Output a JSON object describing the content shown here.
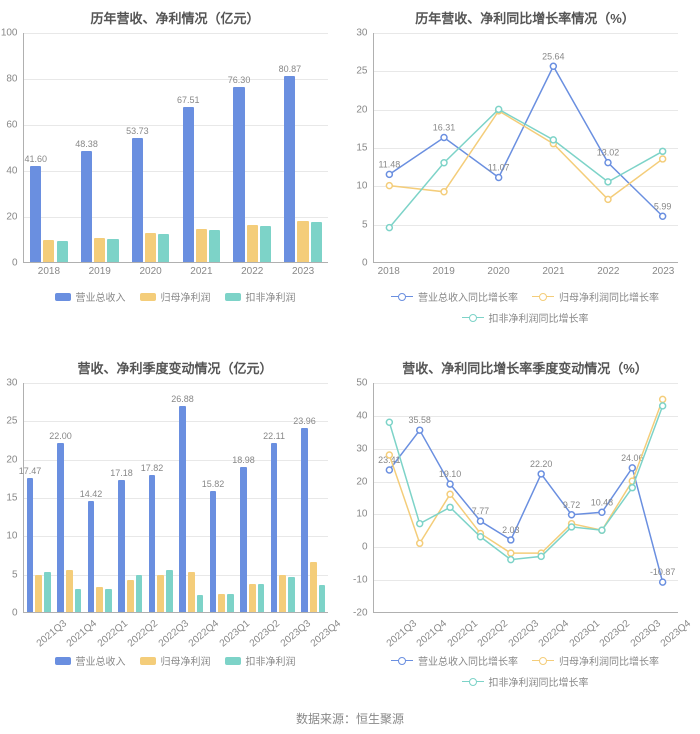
{
  "source_label": "数据来源：恒生聚源",
  "colors": {
    "revenue": "#6a8fe0",
    "np": "#f4cd7a",
    "np_adj": "#7dd3c8",
    "grid": "#e8e8e8",
    "axis": "#b0b0b0",
    "bg": "#ffffff"
  },
  "chart1": {
    "title": "历年营收、净利情况（亿元）",
    "type": "bar",
    "categories": [
      "2018",
      "2019",
      "2020",
      "2021",
      "2022",
      "2023"
    ],
    "ylim": [
      0,
      100
    ],
    "ytick_step": 20,
    "series": [
      {
        "key": "revenue",
        "name": "营业总收入",
        "color": "#6a8fe0",
        "values": [
          41.6,
          48.38,
          53.73,
          67.51,
          76.3,
          80.87
        ],
        "show_label": true
      },
      {
        "key": "np",
        "name": "归母净利润",
        "color": "#f4cd7a",
        "values": [
          9.5,
          10.5,
          12.5,
          14.5,
          16.0,
          18.0
        ],
        "show_label": false
      },
      {
        "key": "np_adj",
        "name": "扣非净利润",
        "color": "#7dd3c8",
        "values": [
          9.0,
          10.0,
          12.0,
          14.0,
          15.5,
          17.5
        ],
        "show_label": false
      }
    ],
    "legend": [
      "营业总收入",
      "归母净利润",
      "扣非净利润"
    ]
  },
  "chart2": {
    "title": "历年营收、净利同比增长率情况（%）",
    "type": "line",
    "categories": [
      "2018",
      "2019",
      "2020",
      "2021",
      "2022",
      "2023"
    ],
    "ylim": [
      0,
      30
    ],
    "ytick_step": 5,
    "series": [
      {
        "key": "revenue",
        "name": "营业总收入同比增长率",
        "color": "#6a8fe0",
        "values": [
          11.48,
          16.31,
          11.07,
          25.64,
          13.02,
          5.99
        ],
        "labels": {
          "0": "11.48",
          "1": "16.31",
          "2": "11.07",
          "3": "25.64",
          "4": "13.02",
          "5": "5.99"
        }
      },
      {
        "key": "np",
        "name": "归母净利润同比增长率",
        "color": "#f4cd7a",
        "values": [
          10.0,
          9.2,
          19.8,
          15.5,
          8.2,
          13.5
        ],
        "labels": {}
      },
      {
        "key": "np_adj",
        "name": "扣非净利润同比增长率",
        "color": "#7dd3c8",
        "values": [
          4.5,
          13.0,
          20.0,
          16.0,
          10.5,
          14.5
        ],
        "labels": {}
      }
    ],
    "legend": [
      "营业总收入同比增长率",
      "归母净利润同比增长率",
      "扣非净利润同比增长率"
    ]
  },
  "chart3": {
    "title": "营收、净利季度变动情况（亿元）",
    "type": "bar",
    "categories": [
      "2021Q3",
      "2021Q4",
      "2022Q1",
      "2022Q2",
      "2022Q3",
      "2022Q4",
      "2023Q1",
      "2023Q2",
      "2023Q3",
      "2023Q4"
    ],
    "rotate_x": true,
    "ylim": [
      0,
      30
    ],
    "ytick_step": 5,
    "series": [
      {
        "key": "revenue",
        "name": "营业总收入",
        "color": "#6a8fe0",
        "values": [
          17.47,
          22.0,
          14.42,
          17.18,
          17.82,
          26.88,
          15.82,
          18.98,
          22.11,
          23.96
        ],
        "show_label": true
      },
      {
        "key": "np",
        "name": "归母净利润",
        "color": "#f4cd7a",
        "values": [
          4.8,
          5.5,
          3.2,
          4.2,
          4.8,
          5.2,
          2.3,
          3.7,
          4.8,
          6.5
        ],
        "show_label": false
      },
      {
        "key": "np_adj",
        "name": "扣非净利润",
        "color": "#7dd3c8",
        "values": [
          5.2,
          3.0,
          3.0,
          4.8,
          5.5,
          2.2,
          2.3,
          3.7,
          4.6,
          3.5
        ],
        "show_label": false
      }
    ],
    "legend": [
      "营业总收入",
      "归母净利润",
      "扣非净利润"
    ]
  },
  "chart4": {
    "title": "营收、净利同比增长率季度变动情况（%）",
    "type": "line",
    "categories": [
      "2021Q3",
      "2021Q4",
      "2022Q1",
      "2022Q2",
      "2022Q3",
      "2022Q4",
      "2023Q1",
      "2023Q2",
      "2023Q3",
      "2023Q4"
    ],
    "rotate_x": true,
    "ylim": [
      -20,
      50
    ],
    "ytick_step": 10,
    "series": [
      {
        "key": "revenue",
        "name": "营业总收入同比增长率",
        "color": "#6a8fe0",
        "values": [
          23.41,
          35.58,
          19.1,
          7.77,
          2.03,
          22.2,
          9.72,
          10.48,
          24.06,
          -10.87
        ],
        "labels": {
          "0": "23.41",
          "1": "35.58",
          "2": "19.10",
          "3": "7.77",
          "4": "2.03",
          "5": "22.20",
          "6": "9.72",
          "7": "10.48",
          "8": "24.06",
          "9": "-10.87"
        }
      },
      {
        "key": "np",
        "name": "归母净利润同比增长率",
        "color": "#f4cd7a",
        "values": [
          28,
          1,
          16,
          4,
          -2,
          -2,
          7,
          5,
          20,
          45
        ],
        "labels": {}
      },
      {
        "key": "np_adj",
        "name": "扣非净利润同比增长率",
        "color": "#7dd3c8",
        "values": [
          38,
          7,
          12,
          3,
          -4,
          -3,
          6,
          5,
          18,
          43
        ],
        "labels": {}
      }
    ],
    "legend": [
      "营业总收入同比增长率",
      "归母净利润同比增长率",
      "扣非净利润同比增长率"
    ]
  }
}
